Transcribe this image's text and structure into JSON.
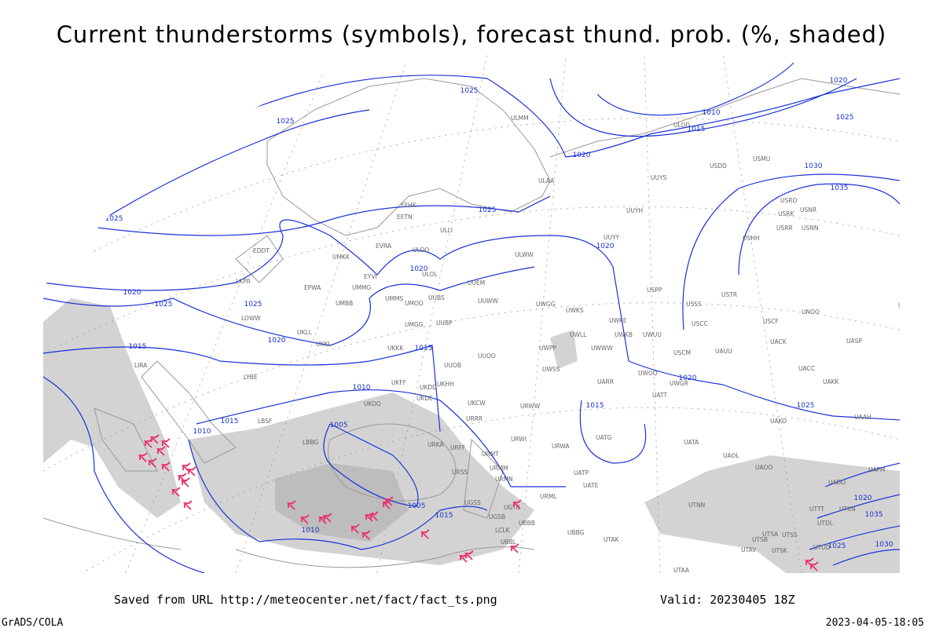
{
  "title": "Current thunderstorms (symbols), forecast thund. prob. (%, shaded)",
  "footer": {
    "source": "Saved from URL http://meteocenter.net/fact/fact_ts.png",
    "valid": "Valid: 20230405 18Z",
    "credit": "GrADS/COLA",
    "timestamp": "2023-04-05-18:05"
  },
  "isobar_labels": [
    "1025",
    "1025",
    "1020",
    "1010",
    "1015",
    "1025",
    "1020",
    "1030",
    "1035",
    "1025",
    "1025",
    "1020",
    "1020",
    "1020",
    "1025",
    "1025",
    "1020",
    "1015",
    "1015",
    "1020",
    "1010",
    "1015",
    "1025",
    "1015",
    "1010",
    "1005",
    "1005",
    "1015",
    "1010",
    "1020",
    "1025",
    "1030",
    "1035"
  ],
  "stations": [
    "ULMM",
    "ULOD",
    "USDD",
    "USMU",
    "UUYS",
    "ULAA",
    "EFHK",
    "EETN",
    "UUYH",
    "ULLI",
    "USRO",
    "USRK",
    "USNR",
    "USRR",
    "USNN",
    "USHH",
    "UUYY",
    "EVRA",
    "ULOO",
    "EDDT",
    "UMKK",
    "ULWW",
    "ULOL",
    "EYVI",
    "EPWA",
    "UMMG",
    "UUEM",
    "LKPR",
    "USSS",
    "USTR",
    "USPP",
    "UNOO",
    "UNBB",
    "UMMS",
    "UMOO",
    "UUBS",
    "UUWW",
    "UMBB",
    "UWGG",
    "UWKS",
    "LOWW",
    "UKLL",
    "UMGG",
    "UUBP",
    "UWKE",
    "UWLL",
    "UWKB",
    "UWUU",
    "USCC",
    "USCF",
    "UACK",
    "UASP",
    "UKKK",
    "UKKI",
    "UWPP",
    "UWWW",
    "USCM",
    "UAUU",
    "UUOO",
    "UUOB",
    "LIRA",
    "UWSS",
    "UACC",
    "UAKK",
    "LYBE",
    "UKHH",
    "UKOO",
    "UKDD",
    "UWOO",
    "UWGR",
    "UARR",
    "UATT",
    "UKFF",
    "LBSF",
    "UKDE",
    "UKCW",
    "URWW",
    "UAAH",
    "UAKO",
    "URRR",
    "UATG",
    "URWI",
    "LBBG",
    "URKA",
    "URFF",
    "URMT",
    "UATA",
    "UAOL",
    "UAOO",
    "URWA",
    "URSS",
    "URMM",
    "UAFM",
    "URMN",
    "UATP",
    "UATE",
    "UADD",
    "URML",
    "UGSS",
    "UGTB",
    "UTTT",
    "UTKN",
    "UTNN",
    "UGSB",
    "UBBB",
    "UBBG",
    "UTAK",
    "UTSA",
    "UTSB",
    "UTSS",
    "UTDD",
    "UTAV",
    "UTSK",
    "UBBL",
    "UTAA",
    "UTDL",
    "LCLK"
  ]
}
